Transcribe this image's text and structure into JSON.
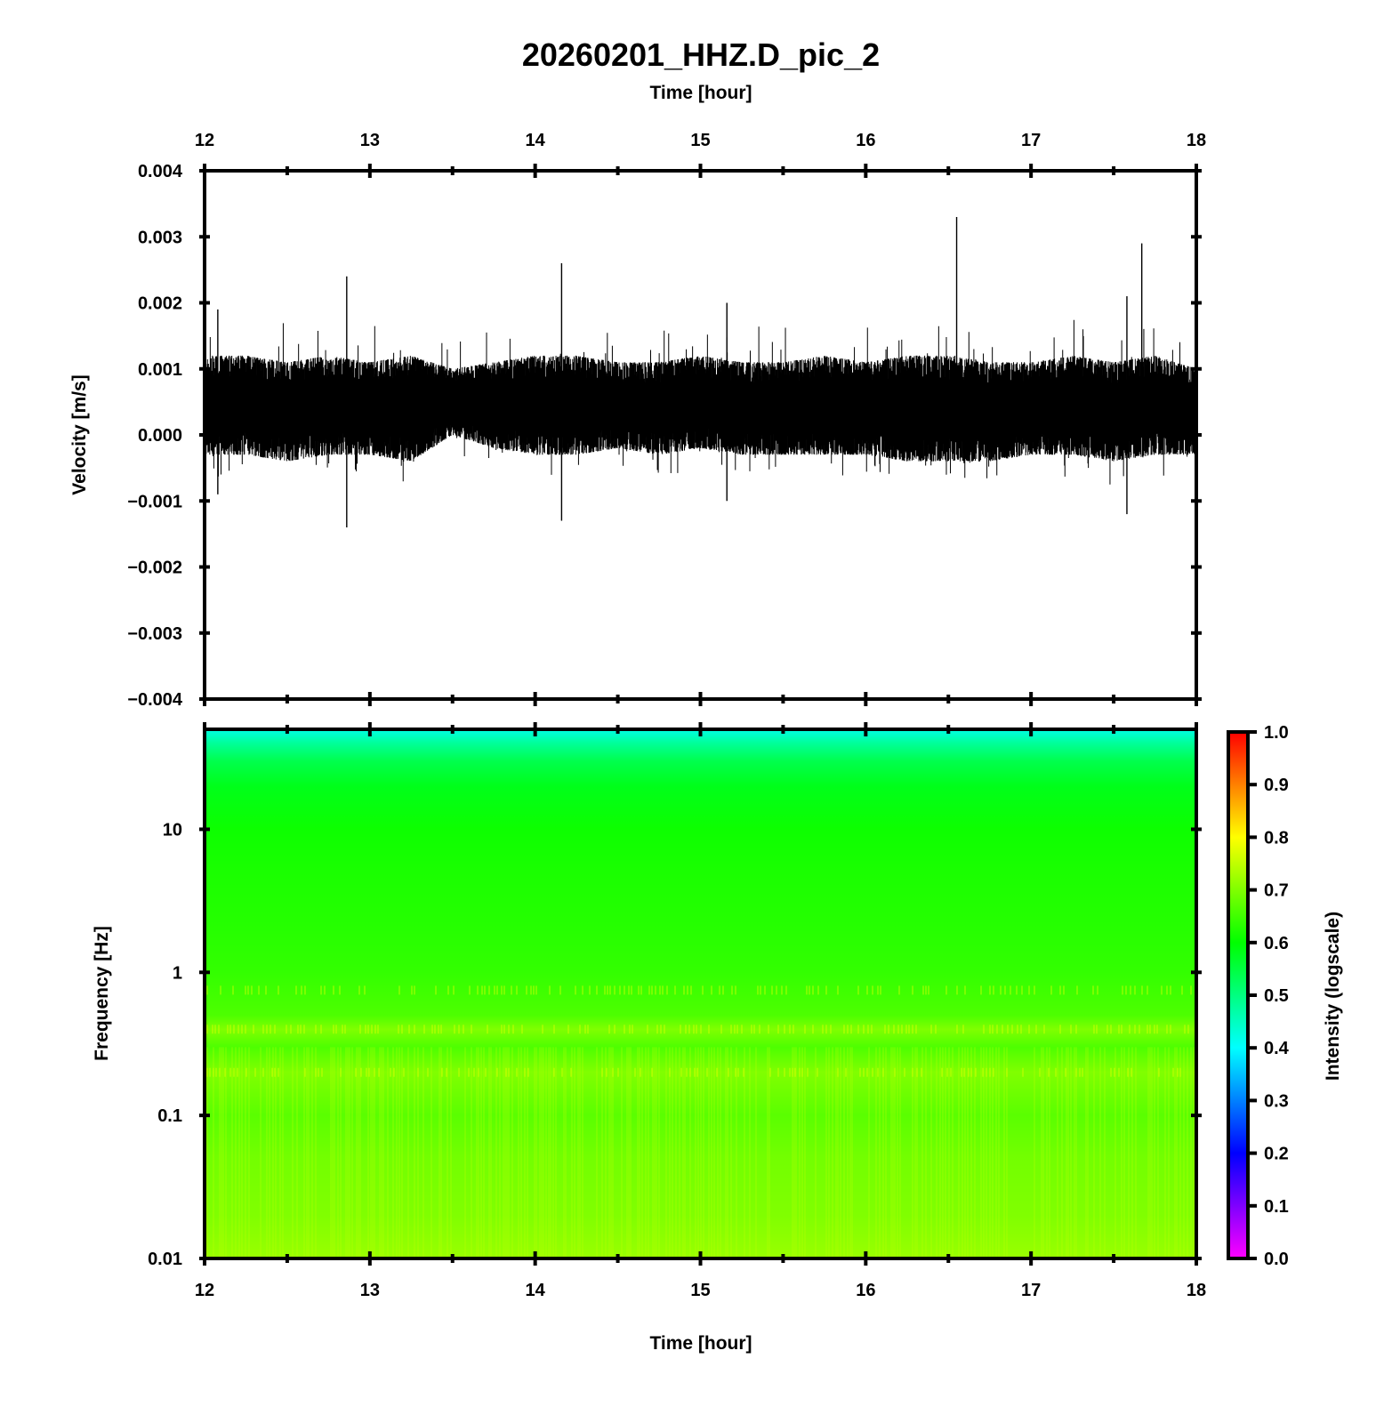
{
  "chart_data": [
    {
      "type": "line",
      "title": "20260201_HHZ.D_pic_2",
      "xlabel": "Time [hour]",
      "ylabel": "Velocity [m/s]",
      "x_tick_labels": [
        "12",
        "13",
        "14",
        "15",
        "16",
        "17",
        "18"
      ],
      "y_tick_labels": [
        "0.004",
        "0.003",
        "0.002",
        "0.001",
        "0.000",
        "−0.001",
        "−0.002",
        "−0.003",
        "−0.004"
      ],
      "xlim": [
        12,
        18
      ],
      "ylim": [
        -0.004,
        0.004
      ],
      "x_unit": "hour",
      "y_unit": "m/s",
      "grid": false,
      "series": [
        {
          "color": "#000000",
          "envelope": {
            "x": [
              12.0,
              12.25,
              12.5,
              12.75,
              13.0,
              13.25,
              13.5,
              13.75,
              14.0,
              14.25,
              14.5,
              14.75,
              15.0,
              15.25,
              15.5,
              15.75,
              16.0,
              16.25,
              16.5,
              16.75,
              17.0,
              17.25,
              17.5,
              17.75,
              18.0
            ],
            "upper": [
              0.0012,
              0.0012,
              0.0011,
              0.0012,
              0.0011,
              0.0012,
              0.001,
              0.0011,
              0.0012,
              0.0012,
              0.0011,
              0.0011,
              0.0012,
              0.0011,
              0.0011,
              0.0012,
              0.0011,
              0.0012,
              0.0012,
              0.0011,
              0.0011,
              0.0012,
              0.0011,
              0.0012,
              0.001
            ],
            "lower": [
              -0.0003,
              -0.0003,
              -0.0004,
              -0.0003,
              -0.0003,
              -0.0004,
              0.0,
              -0.0002,
              -0.0003,
              -0.0003,
              -0.0002,
              -0.0003,
              -0.0002,
              -0.0003,
              -0.0003,
              -0.0003,
              -0.0003,
              -0.0004,
              -0.0004,
              -0.0004,
              -0.0003,
              -0.0003,
              -0.0004,
              -0.0003,
              -0.0003
            ]
          },
          "spikes": [
            {
              "x": 12.08,
              "y": 0.0019
            },
            {
              "x": 12.08,
              "y": -0.0009
            },
            {
              "x": 12.86,
              "y": 0.0024
            },
            {
              "x": 12.86,
              "y": -0.0014
            },
            {
              "x": 14.16,
              "y": 0.0026
            },
            {
              "x": 14.16,
              "y": -0.0013
            },
            {
              "x": 15.16,
              "y": 0.002
            },
            {
              "x": 15.16,
              "y": -0.001
            },
            {
              "x": 16.55,
              "y": 0.0033
            },
            {
              "x": 17.58,
              "y": 0.0021
            },
            {
              "x": 17.58,
              "y": -0.0012
            },
            {
              "x": 17.67,
              "y": 0.0029
            }
          ]
        }
      ]
    },
    {
      "type": "heatmap",
      "xlabel": "Time [hour]",
      "ylabel": "Frequency [Hz]",
      "x_tick_labels": [
        "12",
        "13",
        "14",
        "15",
        "16",
        "17",
        "18"
      ],
      "y_tick_labels": [
        "10",
        "1",
        "0.1",
        "0.01"
      ],
      "xlim": [
        12,
        18
      ],
      "ylim": [
        0.01,
        50
      ],
      "y_scale": "log",
      "grid": false,
      "colorbar": {
        "label": "Intensity (logscale)",
        "min": 0.0,
        "max": 1.0,
        "tick_labels": [
          "1.0",
          "0.9",
          "0.8",
          "0.7",
          "0.6",
          "0.5",
          "0.4",
          "0.3",
          "0.2",
          "0.1",
          "0.0"
        ],
        "colors": [
          "#ff00ff",
          "#7f00ff",
          "#0000ff",
          "#0080ff",
          "#00ffff",
          "#00ff80",
          "#00ff00",
          "#80ff00",
          "#ffff00",
          "#ff8000",
          "#ff0000"
        ]
      },
      "intensity_profile": {
        "frequency_hz": [
          50,
          40,
          30,
          20,
          10,
          5,
          2,
          1,
          0.5,
          0.4,
          0.3,
          0.2,
          0.1,
          0.05,
          0.02,
          0.01
        ],
        "intensity": [
          0.42,
          0.48,
          0.54,
          0.58,
          0.61,
          0.62,
          0.63,
          0.64,
          0.66,
          0.7,
          0.66,
          0.7,
          0.67,
          0.69,
          0.7,
          0.72
        ]
      }
    }
  ]
}
